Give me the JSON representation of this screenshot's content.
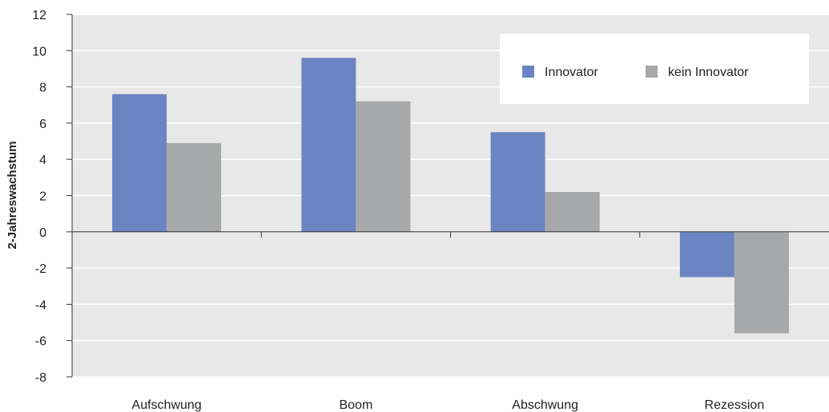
{
  "chart_data": {
    "type": "bar",
    "categories": [
      "Aufschwung",
      "Boom",
      "Abschwung",
      "Rezession"
    ],
    "series": [
      {
        "name": "Innovator",
        "values": [
          7.6,
          9.6,
          5.5,
          -2.5
        ],
        "color": "#6b84c2"
      },
      {
        "name": "kein Innovator",
        "values": [
          4.9,
          7.2,
          2.2,
          -5.6
        ],
        "color": "#a7a8aa"
      }
    ],
    "ylabel": "2-Jahreswachstum",
    "ylim": [
      -8,
      12
    ],
    "yticks": [
      12,
      10,
      8,
      6,
      4,
      2,
      0,
      -2,
      -4,
      -6,
      -8
    ],
    "grid": true,
    "plot_background": "#e8e8e8",
    "grid_color": "#ffffff",
    "legend": {
      "placement": "top-right"
    }
  }
}
